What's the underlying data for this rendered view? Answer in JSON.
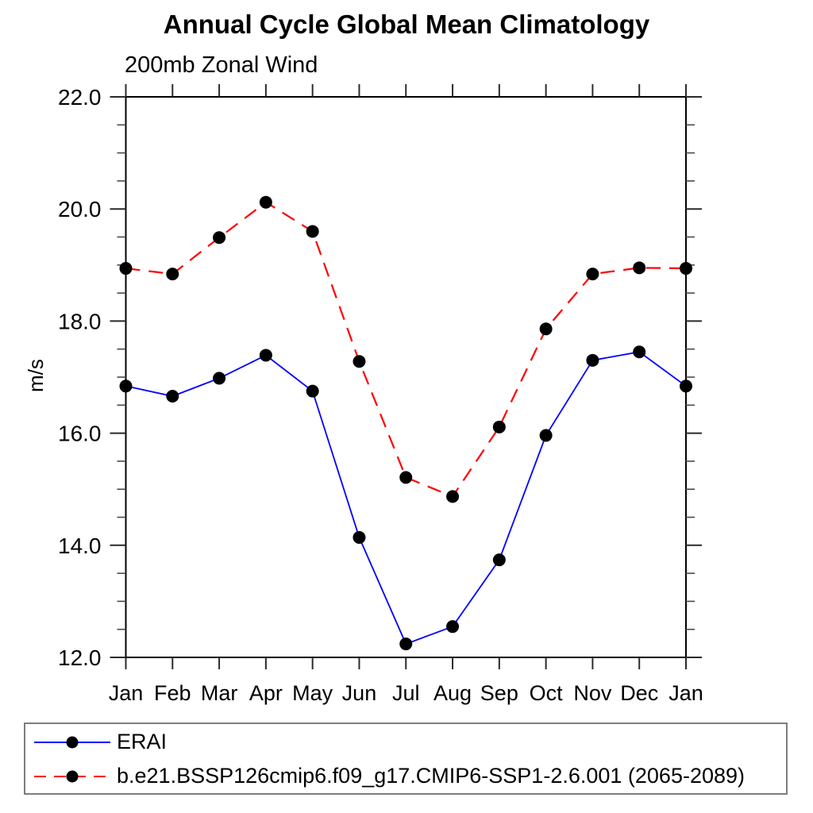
{
  "chart_data": {
    "type": "line",
    "title": "Annual Cycle Global Mean Climatology",
    "subtitle": "200mb Zonal Wind",
    "ylabel": "m/s",
    "x_categories": [
      "Jan",
      "Feb",
      "Mar",
      "Apr",
      "May",
      "Jun",
      "Jul",
      "Aug",
      "Sep",
      "Oct",
      "Nov",
      "Dec",
      "Jan"
    ],
    "ylim": [
      12.0,
      22.0
    ],
    "ytick_major": [
      12.0,
      14.0,
      16.0,
      18.0,
      20.0,
      22.0
    ],
    "ytick_labels": [
      "12.0",
      "14.0",
      "16.0",
      "18.0",
      "20.0",
      "22.0"
    ],
    "ytick_minor_step": 0.5,
    "grid": false,
    "legend_position": "bottom-left",
    "marker_color": "#000000",
    "axis_color": "#000000",
    "series": [
      {
        "name": "ERAI",
        "color": "#0000ff",
        "style": "solid",
        "values": [
          16.84,
          16.66,
          16.98,
          17.39,
          16.75,
          14.14,
          12.24,
          12.55,
          13.74,
          15.96,
          17.3,
          17.45,
          16.84
        ]
      },
      {
        "name": "b.e21.BSSP126cmip6.f09_g17.CMIP6-SSP1-2.6.001 (2065-2089)",
        "color": "#ff0000",
        "style": "dashed",
        "values": [
          18.94,
          18.84,
          19.49,
          20.12,
          19.6,
          17.28,
          15.21,
          14.87,
          16.11,
          17.86,
          18.84,
          18.95,
          18.94
        ]
      }
    ]
  }
}
